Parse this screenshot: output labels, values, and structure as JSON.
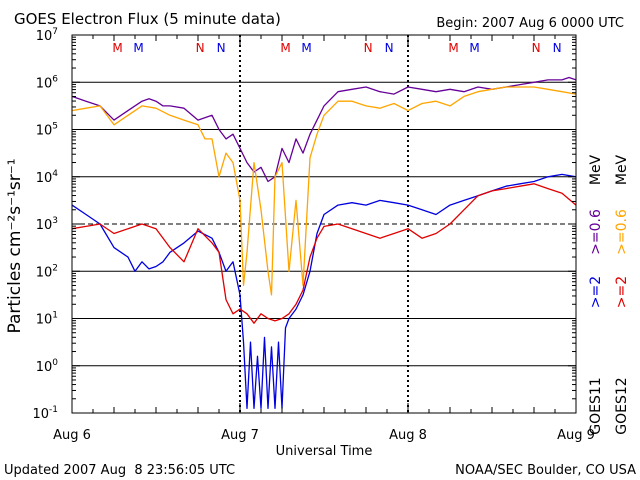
{
  "chart_data": {
    "type": "line",
    "title": "GOES Electron Flux (5 minute data)",
    "begin_label": "Begin: 2007 Aug 6 0000 UTC",
    "xlabel": "Universal Time",
    "ylabel": "Particles cm⁻²s⁻¹sr⁻¹",
    "x_unit": "hours since 2007-08-06 00:00 UTC",
    "xlim": [
      0,
      72
    ],
    "ylim_log10": [
      -1,
      7
    ],
    "x_ticks": [
      {
        "x": 0,
        "label": "Aug 6"
      },
      {
        "x": 24,
        "label": "Aug 7"
      },
      {
        "x": 48,
        "label": "Aug 8"
      },
      {
        "x": 72,
        "label": "Aug 9"
      }
    ],
    "y_ticks": [
      {
        "exp": 7,
        "base": "10",
        "sup": "7"
      },
      {
        "exp": 6,
        "base": "10",
        "sup": "6"
      },
      {
        "exp": 5,
        "base": "10",
        "sup": "5"
      },
      {
        "exp": 4,
        "base": "10",
        "sup": "4"
      },
      {
        "exp": 3,
        "base": "10",
        "sup": "3"
      },
      {
        "exp": 2,
        "base": "10",
        "sup": "2"
      },
      {
        "exp": 1,
        "base": "10",
        "sup": "1"
      },
      {
        "exp": 0,
        "base": "10",
        "sup": "0"
      },
      {
        "exp": -1,
        "base": "10",
        "sup": "-1"
      }
    ],
    "grid_solid_exp": [
      6,
      5,
      4,
      2,
      1,
      0
    ],
    "grid_dashed_exp": [
      3
    ],
    "markers": [
      {
        "x": 6.5,
        "label": "M",
        "color": "#e00000"
      },
      {
        "x": 9.5,
        "label": "M",
        "color": "#0000e0"
      },
      {
        "x": 18.3,
        "label": "N",
        "color": "#e00000"
      },
      {
        "x": 21.3,
        "label": "N",
        "color": "#0000e0"
      },
      {
        "x": 30.5,
        "label": "M",
        "color": "#e00000"
      },
      {
        "x": 33.5,
        "label": "M",
        "color": "#0000e0"
      },
      {
        "x": 42.3,
        "label": "N",
        "color": "#e00000"
      },
      {
        "x": 45.3,
        "label": "N",
        "color": "#0000e0"
      },
      {
        "x": 54.5,
        "label": "M",
        "color": "#e00000"
      },
      {
        "x": 57.5,
        "label": "M",
        "color": "#0000e0"
      },
      {
        "x": 66.3,
        "label": "N",
        "color": "#e00000"
      },
      {
        "x": 69.3,
        "label": "N",
        "color": "#0000e0"
      }
    ],
    "series": [
      {
        "name": "GOES11 >=0.6 MeV",
        "color": "#660099",
        "x": [
          0,
          2,
          4,
          6,
          8,
          10,
          11,
          12,
          13,
          14,
          16,
          18,
          20,
          21,
          22,
          23,
          24,
          25,
          26,
          27,
          28,
          29,
          30,
          31,
          32,
          33,
          34,
          35,
          36,
          38,
          40,
          42,
          44,
          46,
          48,
          50,
          52,
          54,
          56,
          58,
          60,
          62,
          64,
          66,
          68,
          70,
          71,
          72
        ],
        "log10": [
          5.7,
          5.6,
          5.5,
          5.2,
          5.4,
          5.6,
          5.65,
          5.6,
          5.5,
          5.5,
          5.45,
          5.2,
          5.3,
          5.0,
          4.8,
          4.9,
          4.6,
          4.3,
          4.1,
          4.2,
          3.9,
          4.0,
          4.6,
          4.3,
          4.8,
          4.5,
          4.9,
          5.2,
          5.5,
          5.8,
          5.85,
          5.9,
          5.8,
          5.75,
          5.9,
          5.85,
          5.8,
          5.85,
          5.8,
          5.9,
          5.85,
          5.9,
          5.95,
          6.0,
          6.05,
          6.05,
          6.1,
          6.05
        ]
      },
      {
        "name": "GOES12 >=0.6 MeV",
        "color": "#ffa500",
        "x": [
          0,
          2,
          4,
          6,
          8,
          10,
          12,
          14,
          16,
          18,
          19,
          20,
          21,
          22,
          23,
          24,
          24.5,
          25,
          26,
          27,
          28,
          28.5,
          29,
          30,
          31,
          32,
          33,
          34,
          35,
          36,
          38,
          40,
          42,
          44,
          46,
          48,
          50,
          52,
          54,
          56,
          58,
          60,
          62,
          64,
          66,
          68,
          70,
          72
        ],
        "log10": [
          5.4,
          5.45,
          5.5,
          5.1,
          5.3,
          5.5,
          5.45,
          5.3,
          5.2,
          5.1,
          4.8,
          4.8,
          4.0,
          4.5,
          4.3,
          3.5,
          1.7,
          2.4,
          4.3,
          3.3,
          2.0,
          1.5,
          4.0,
          4.3,
          2.0,
          3.5,
          1.7,
          4.4,
          4.9,
          5.3,
          5.6,
          5.6,
          5.5,
          5.45,
          5.55,
          5.4,
          5.55,
          5.6,
          5.5,
          5.7,
          5.8,
          5.85,
          5.9,
          5.9,
          5.9,
          5.85,
          5.8,
          5.75
        ]
      },
      {
        "name": "GOES11 >=2 MeV",
        "color": "#0000e0",
        "x": [
          0,
          2,
          4,
          6,
          8,
          9,
          10,
          11,
          12,
          13,
          14,
          16,
          18,
          20,
          21,
          22,
          23,
          24,
          24.5,
          25,
          25.5,
          26,
          26.5,
          27,
          27.5,
          28,
          28.5,
          29,
          29.5,
          30,
          30.5,
          31,
          32,
          33,
          34,
          35,
          36,
          38,
          40,
          42,
          44,
          46,
          48,
          50,
          52,
          54,
          56,
          58,
          60,
          62,
          64,
          66,
          68,
          70,
          72
        ],
        "log10": [
          3.4,
          3.2,
          3.0,
          2.5,
          2.3,
          2.0,
          2.2,
          2.05,
          2.1,
          2.2,
          2.4,
          2.6,
          2.85,
          2.7,
          2.4,
          2.0,
          2.2,
          1.5,
          0.5,
          -0.9,
          0.5,
          -0.9,
          0.2,
          -0.9,
          0.6,
          -0.9,
          0.4,
          -0.9,
          0.5,
          -0.9,
          0.8,
          1.0,
          1.2,
          1.5,
          2.0,
          2.8,
          3.2,
          3.4,
          3.45,
          3.4,
          3.5,
          3.45,
          3.4,
          3.3,
          3.2,
          3.4,
          3.5,
          3.6,
          3.7,
          3.8,
          3.85,
          3.9,
          4.0,
          4.05,
          4.0
        ]
      },
      {
        "name": "GOES12 >=2 MeV",
        "color": "#e00000",
        "x": [
          0,
          2,
          4,
          6,
          8,
          10,
          12,
          14,
          16,
          18,
          20,
          21,
          22,
          23,
          24,
          25,
          26,
          27,
          28,
          29,
          30,
          31,
          32,
          33,
          34,
          35,
          36,
          38,
          40,
          42,
          44,
          46,
          48,
          50,
          52,
          54,
          56,
          58,
          60,
          62,
          64,
          66,
          68,
          70,
          72
        ],
        "log10": [
          2.9,
          2.95,
          3.0,
          2.8,
          2.9,
          3.0,
          2.9,
          2.5,
          2.2,
          2.9,
          2.6,
          2.4,
          1.4,
          1.1,
          1.2,
          1.1,
          0.9,
          1.1,
          1.0,
          0.95,
          1.0,
          1.1,
          1.3,
          1.6,
          2.3,
          2.7,
          2.95,
          3.0,
          2.9,
          2.8,
          2.7,
          2.8,
          2.9,
          2.7,
          2.8,
          3.0,
          3.3,
          3.6,
          3.7,
          3.75,
          3.8,
          3.85,
          3.75,
          3.65,
          3.4
        ]
      }
    ],
    "right_labels": [
      {
        "text": ">=2",
        "color": "#0000e0",
        "col": 1,
        "pos": "bottom"
      },
      {
        "text": ">=0.6",
        "color": "#660099",
        "col": 1,
        "pos": "middle"
      },
      {
        "text": "MeV",
        "color": "#000000",
        "col": 1,
        "pos": "top"
      },
      {
        "text": ">=2",
        "color": "#e00000",
        "col": 2,
        "pos": "bottom"
      },
      {
        "text": ">=0.6",
        "color": "#ffa500",
        "col": 2,
        "pos": "middle"
      },
      {
        "text": "MeV",
        "color": "#000000",
        "col": 2,
        "pos": "top"
      },
      {
        "text": "GOES11",
        "color": "#000000",
        "col": 1,
        "pos": "sat"
      },
      {
        "text": "GOES12",
        "color": "#000000",
        "col": 2,
        "pos": "sat"
      }
    ]
  },
  "footer": {
    "updated": "Updated 2007 Aug  8 23:56:05 UTC",
    "credit": "NOAA/SEC Boulder, CO USA"
  }
}
